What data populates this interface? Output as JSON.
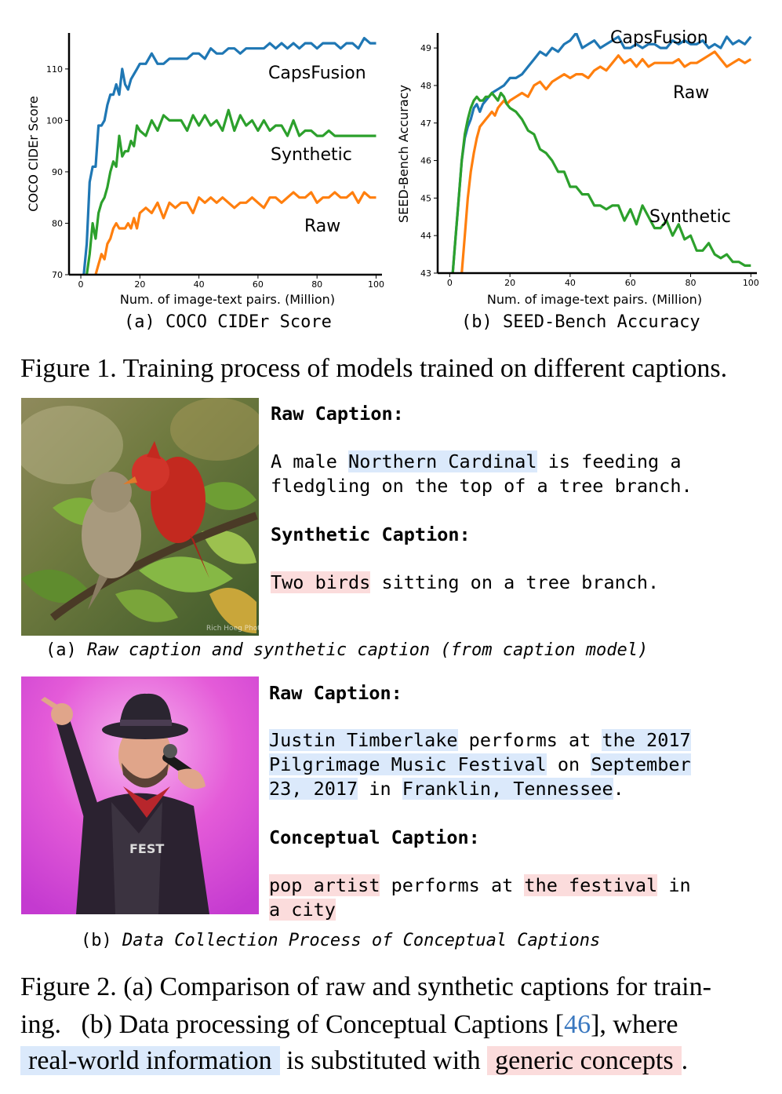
{
  "figure1": {
    "caption": "Figure 1. Training process of models trained on different captions.",
    "subcaption_a": "(a) COCO CIDEr Score",
    "subcaption_b": "(b) SEED-Bench Accuracy"
  },
  "chart_data": [
    {
      "type": "line",
      "xlabel": "Num. of image-text pairs. (Million)",
      "ylabel": "COCO CIDEr Score",
      "xlim": [
        -4,
        102
      ],
      "ylim": [
        70,
        117
      ],
      "xticks": [
        "0",
        "20",
        "40",
        "60",
        "80",
        "100"
      ],
      "yticks": [
        "70",
        "80",
        "90",
        "100",
        "110"
      ],
      "series": [
        {
          "name": "CapsFusion",
          "color": "#1f77b4",
          "x": [
            1,
            2,
            3,
            4,
            5,
            6,
            7,
            8,
            9,
            10,
            11,
            12,
            13,
            14,
            15,
            16,
            17,
            18,
            19,
            20,
            22,
            24,
            26,
            28,
            30,
            32,
            34,
            36,
            38,
            40,
            42,
            44,
            46,
            48,
            50,
            52,
            54,
            56,
            58,
            60,
            62,
            64,
            66,
            68,
            70,
            72,
            74,
            76,
            78,
            80,
            82,
            84,
            86,
            88,
            90,
            92,
            94,
            96,
            98,
            100
          ],
          "y": [
            70,
            76,
            88,
            91,
            91,
            99,
            99,
            100,
            103,
            105,
            105,
            107,
            105,
            110,
            107,
            106,
            108,
            109,
            110,
            111,
            111,
            113,
            111,
            111,
            112,
            112,
            112,
            112,
            113,
            113,
            112,
            114,
            113,
            113,
            114,
            114,
            113,
            114,
            114,
            114,
            114,
            115,
            114,
            115,
            114,
            115,
            114,
            115,
            115,
            114,
            115,
            115,
            115,
            114,
            115,
            115,
            114,
            116,
            115,
            115
          ]
        },
        {
          "name": "Synthetic",
          "color": "#2ca02c",
          "x": [
            2,
            3,
            4,
            5,
            6,
            7,
            8,
            9,
            10,
            11,
            12,
            13,
            14,
            15,
            16,
            17,
            18,
            19,
            20,
            22,
            24,
            26,
            28,
            30,
            32,
            34,
            36,
            38,
            40,
            42,
            44,
            46,
            48,
            50,
            52,
            54,
            56,
            58,
            60,
            62,
            64,
            66,
            68,
            70,
            72,
            74,
            76,
            78,
            80,
            82,
            84,
            86,
            88,
            90,
            92,
            94,
            96,
            98,
            100
          ],
          "y": [
            70,
            74,
            80,
            77,
            82,
            84,
            85,
            87,
            90,
            92,
            91,
            97,
            93,
            94,
            94,
            96,
            95,
            99,
            98,
            97,
            100,
            98,
            101,
            100,
            100,
            100,
            98,
            101,
            99,
            101,
            99,
            100,
            98,
            102,
            98,
            101,
            99,
            100,
            98,
            100,
            98,
            99,
            99,
            97,
            100,
            97,
            98,
            98,
            97,
            97,
            98,
            97,
            97,
            97,
            97,
            97,
            97,
            97,
            97
          ]
        },
        {
          "name": "Raw",
          "color": "#ff7f0e",
          "x": [
            5,
            6,
            7,
            8,
            9,
            10,
            11,
            12,
            13,
            14,
            15,
            16,
            17,
            18,
            19,
            20,
            22,
            24,
            26,
            28,
            30,
            32,
            34,
            36,
            38,
            40,
            42,
            44,
            46,
            48,
            50,
            52,
            54,
            56,
            58,
            60,
            62,
            64,
            66,
            68,
            70,
            72,
            74,
            76,
            78,
            80,
            82,
            84,
            86,
            88,
            90,
            92,
            94,
            96,
            98,
            100
          ],
          "y": [
            70,
            72,
            74,
            73,
            76,
            77,
            79,
            80,
            79,
            79,
            79,
            80,
            79,
            81,
            79,
            82,
            83,
            82,
            84,
            81,
            84,
            83,
            84,
            84,
            82,
            85,
            84,
            85,
            84,
            85,
            84,
            83,
            84,
            84,
            85,
            84,
            83,
            85,
            85,
            84,
            85,
            86,
            85,
            85,
            86,
            84,
            85,
            85,
            86,
            85,
            85,
            86,
            84,
            86,
            85,
            85
          ]
        }
      ]
    },
    {
      "type": "line",
      "xlabel": "Num. of image-text pairs. (Million)",
      "ylabel": "SEED-Bench Accuracy",
      "xlim": [
        -4,
        102
      ],
      "ylim": [
        43,
        49.4
      ],
      "xticks": [
        "0",
        "20",
        "40",
        "60",
        "80",
        "100"
      ],
      "yticks": [
        "43",
        "44",
        "45",
        "46",
        "47",
        "48",
        "49"
      ],
      "series": [
        {
          "name": "CapsFusion",
          "color": "#1f77b4",
          "x": [
            1,
            2,
            3,
            4,
            5,
            6,
            7,
            8,
            9,
            10,
            11,
            12,
            13,
            14,
            16,
            18,
            20,
            22,
            24,
            26,
            28,
            30,
            32,
            34,
            36,
            38,
            40,
            42,
            44,
            46,
            48,
            50,
            52,
            54,
            56,
            58,
            60,
            62,
            64,
            66,
            68,
            70,
            72,
            74,
            76,
            78,
            80,
            82,
            84,
            86,
            88,
            90,
            92,
            94,
            96,
            98,
            100
          ],
          "y": [
            43,
            44,
            45,
            46,
            46.6,
            46.9,
            47.1,
            47.4,
            47.5,
            47.3,
            47.5,
            47.6,
            47.7,
            47.8,
            47.9,
            48,
            48.2,
            48.2,
            48.3,
            48.5,
            48.7,
            48.9,
            48.8,
            49,
            48.9,
            49.1,
            49.2,
            49.4,
            49,
            49.1,
            49.2,
            49,
            49.1,
            49.2,
            49.3,
            49,
            49,
            49.1,
            49,
            49.1,
            49.1,
            49,
            49,
            49.2,
            49.1,
            49.2,
            49.1,
            49.1,
            49.2,
            49,
            49.1,
            49,
            49.3,
            49.1,
            49.2,
            49.1,
            49.3
          ]
        },
        {
          "name": "Raw",
          "color": "#ff7f0e",
          "x": [
            4,
            5,
            6,
            7,
            8,
            9,
            10,
            11,
            12,
            13,
            14,
            15,
            16,
            17,
            18,
            19,
            20,
            22,
            24,
            26,
            28,
            30,
            32,
            34,
            36,
            38,
            40,
            42,
            44,
            46,
            48,
            50,
            52,
            54,
            56,
            58,
            60,
            62,
            64,
            66,
            68,
            70,
            72,
            74,
            76,
            78,
            80,
            82,
            84,
            86,
            88,
            90,
            92,
            94,
            96,
            98,
            100
          ],
          "y": [
            43,
            44,
            45,
            45.7,
            46.2,
            46.6,
            46.9,
            47,
            47.1,
            47.2,
            47.3,
            47.2,
            47.4,
            47.5,
            47.6,
            47.5,
            47.6,
            47.7,
            47.8,
            47.7,
            48,
            48.1,
            47.9,
            48.1,
            48.2,
            48.3,
            48.2,
            48.3,
            48.3,
            48.2,
            48.4,
            48.5,
            48.4,
            48.6,
            48.8,
            48.6,
            48.7,
            48.5,
            48.7,
            48.5,
            48.6,
            48.6,
            48.6,
            48.6,
            48.7,
            48.5,
            48.6,
            48.6,
            48.7,
            48.8,
            48.9,
            48.7,
            48.5,
            48.6,
            48.7,
            48.6,
            48.7
          ]
        },
        {
          "name": "Synthetic",
          "color": "#2ca02c",
          "x": [
            1,
            2,
            3,
            4,
            5,
            6,
            7,
            8,
            9,
            10,
            11,
            12,
            13,
            14,
            15,
            16,
            17,
            18,
            19,
            20,
            22,
            24,
            26,
            28,
            30,
            32,
            34,
            36,
            38,
            40,
            42,
            44,
            46,
            48,
            50,
            52,
            54,
            56,
            58,
            60,
            62,
            64,
            66,
            68,
            70,
            72,
            74,
            76,
            78,
            80,
            82,
            84,
            86,
            88,
            90,
            92,
            94,
            96,
            98,
            100
          ],
          "y": [
            43,
            44,
            45,
            46,
            46.7,
            47.1,
            47.4,
            47.6,
            47.7,
            47.6,
            47.6,
            47.7,
            47.7,
            47.8,
            47.7,
            47.6,
            47.8,
            47.7,
            47.5,
            47.4,
            47.3,
            47.1,
            46.8,
            46.7,
            46.3,
            46.2,
            46,
            45.7,
            45.7,
            45.3,
            45.3,
            45.1,
            45.1,
            44.8,
            44.8,
            44.7,
            44.8,
            44.8,
            44.4,
            44.7,
            44.3,
            44.8,
            44.5,
            44.2,
            44.2,
            44.4,
            44,
            44.3,
            43.9,
            44,
            43.6,
            43.6,
            43.8,
            43.5,
            43.4,
            43.5,
            43.3,
            43.3,
            43.2,
            43.2
          ]
        }
      ]
    }
  ],
  "figure2": {
    "a": {
      "raw_heading": "Raw Caption:",
      "raw_l1_pre": "A male ",
      "raw_l1_hl": "Northern Cardinal",
      "raw_l1_post": " is feeding a",
      "raw_l2": "fledgling on the top of a tree branch.",
      "syn_heading": "Synthetic Caption:",
      "syn_hl": "Two birds",
      "syn_post": " sitting on a tree branch.",
      "watermark": "Rich Hoeg Photo",
      "label_prefix": "(a) ",
      "label_text": "Raw caption and synthetic caption (from caption model)"
    },
    "b": {
      "raw_heading": "Raw Caption:",
      "r1_hl1": "Justin Timberlake",
      "r1_mid": " performs at ",
      "r1_hl2": "the 2017",
      "r2_hl1": "Pilgrimage Music Festival",
      "r2_mid": " on ",
      "r2_hl2": "September",
      "r3_hl1": "23, 2017",
      "r3_mid": " in ",
      "r3_hl2": "Franklin, Tennessee",
      "r3_end": ".",
      "concept_heading": "Conceptual Caption:",
      "c1_hl1": "pop artist",
      "c1_mid": " performs at ",
      "c1_hl2": "the festival",
      "c1_end": " in",
      "c2_hl": "a city",
      "shirt_text": "FEST",
      "label_prefix": "(b) ",
      "label_text": "Data Collection Process of Conceptual Captions"
    },
    "caption": {
      "l1": "Figure 2. (a) Comparison of raw and synthetic captions for train-",
      "l2_a": "ing.   (b) Data processing of Conceptual Captions [",
      "l2_cite": "46",
      "l2_b": "], where",
      "l3_hl1": "real-world information",
      "l3_mid": " is substituted with ",
      "l3_hl2": "generic concepts",
      "l3_end": "."
    }
  }
}
